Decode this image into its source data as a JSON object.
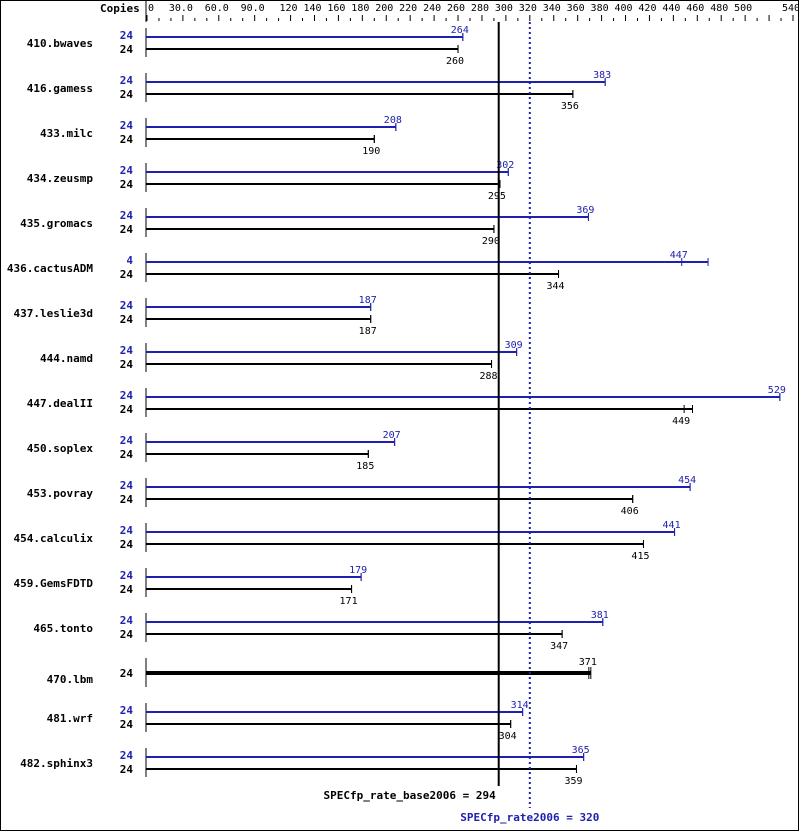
{
  "chart_data": {
    "type": "bar",
    "orientation": "horizontal",
    "header_label": "Copies",
    "tick_labels": [
      "0",
      "30.0",
      "60.0",
      "90.0",
      "120",
      "140",
      "160",
      "180",
      "200",
      "220",
      "240",
      "260",
      "280",
      "300",
      "320",
      "340",
      "360",
      "380",
      "400",
      "420",
      "440",
      "460",
      "480",
      "500",
      "540"
    ],
    "tick_values": [
      0,
      30,
      60,
      90,
      120,
      140,
      160,
      180,
      200,
      220,
      240,
      260,
      280,
      300,
      320,
      340,
      360,
      380,
      400,
      420,
      440,
      460,
      480,
      500,
      540
    ],
    "xlim": [
      0,
      540
    ],
    "colors": {
      "peak": "#2020b0",
      "base": "#000000"
    },
    "benchmarks": [
      {
        "name": "410.bwaves",
        "peak_copies": "24",
        "peak": 264,
        "base_copies": "24",
        "base": 260
      },
      {
        "name": "416.gamess",
        "peak_copies": "24",
        "peak": 383,
        "base_copies": "24",
        "base": 356
      },
      {
        "name": "433.milc",
        "peak_copies": "24",
        "peak": 208,
        "base_copies": "24",
        "base": 190
      },
      {
        "name": "434.zeusmp",
        "peak_copies": "24",
        "peak": 302,
        "base_copies": "24",
        "base": 295
      },
      {
        "name": "435.gromacs",
        "peak_copies": "24",
        "peak": 369,
        "base_copies": "24",
        "base": 290
      },
      {
        "name": "436.cactusADM",
        "peak_copies": "4",
        "peak": 447,
        "peak_max": 469,
        "base_copies": "24",
        "base": 344
      },
      {
        "name": "437.leslie3d",
        "peak_copies": "24",
        "peak": 187,
        "base_copies": "24",
        "base": 187
      },
      {
        "name": "444.namd",
        "peak_copies": "24",
        "peak": 309,
        "base_copies": "24",
        "base": 288
      },
      {
        "name": "447.dealII",
        "peak_copies": "24",
        "peak": 529,
        "base_copies": "24",
        "base": 449,
        "base_max": 456
      },
      {
        "name": "450.soplex",
        "peak_copies": "24",
        "peak": 207,
        "base_copies": "24",
        "base": 185
      },
      {
        "name": "453.povray",
        "peak_copies": "24",
        "peak": 454,
        "base_copies": "24",
        "base": 406
      },
      {
        "name": "454.calculix",
        "peak_copies": "24",
        "peak": 441,
        "base_copies": "24",
        "base": 415
      },
      {
        "name": "459.GemsFDTD",
        "peak_copies": "24",
        "peak": 179,
        "base_copies": "24",
        "base": 171
      },
      {
        "name": "465.tonto",
        "peak_copies": "24",
        "peak": 381,
        "base_copies": "24",
        "base": 347
      },
      {
        "name": "470.lbm",
        "peak_copies": null,
        "peak": null,
        "base_copies": "24",
        "base": 371
      },
      {
        "name": "481.wrf",
        "peak_copies": "24",
        "peak": 314,
        "base_copies": "24",
        "base": 304
      },
      {
        "name": "482.sphinx3",
        "peak_copies": "24",
        "peak": 365,
        "base_copies": "24",
        "base": 359
      }
    ],
    "base_metric": {
      "label": "SPECfp_rate_base2006 = 294",
      "value": 294
    },
    "peak_metric": {
      "label": "SPECfp_rate2006 = 320",
      "value": 320
    }
  }
}
